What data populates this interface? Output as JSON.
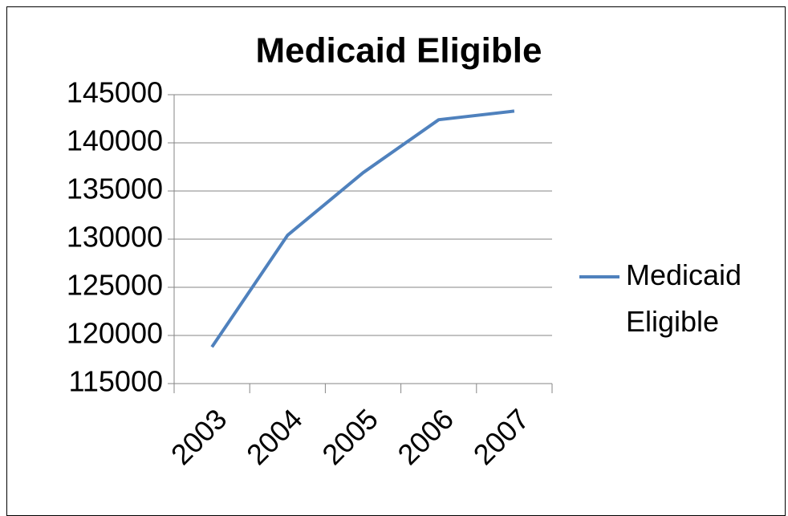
{
  "chart_data": {
    "type": "line",
    "title": "Medicaid Eligible",
    "categories": [
      "2003",
      "2004",
      "2005",
      "2006",
      "2007"
    ],
    "series": [
      {
        "name": "Medicaid Eligible",
        "color": "#4f81bd",
        "values": [
          118800,
          130400,
          136900,
          142400,
          143300
        ]
      }
    ],
    "ylim": [
      115000,
      145000
    ],
    "yticks": [
      115000,
      120000,
      125000,
      130000,
      135000,
      140000,
      145000
    ],
    "grid": true,
    "legend": "right"
  }
}
